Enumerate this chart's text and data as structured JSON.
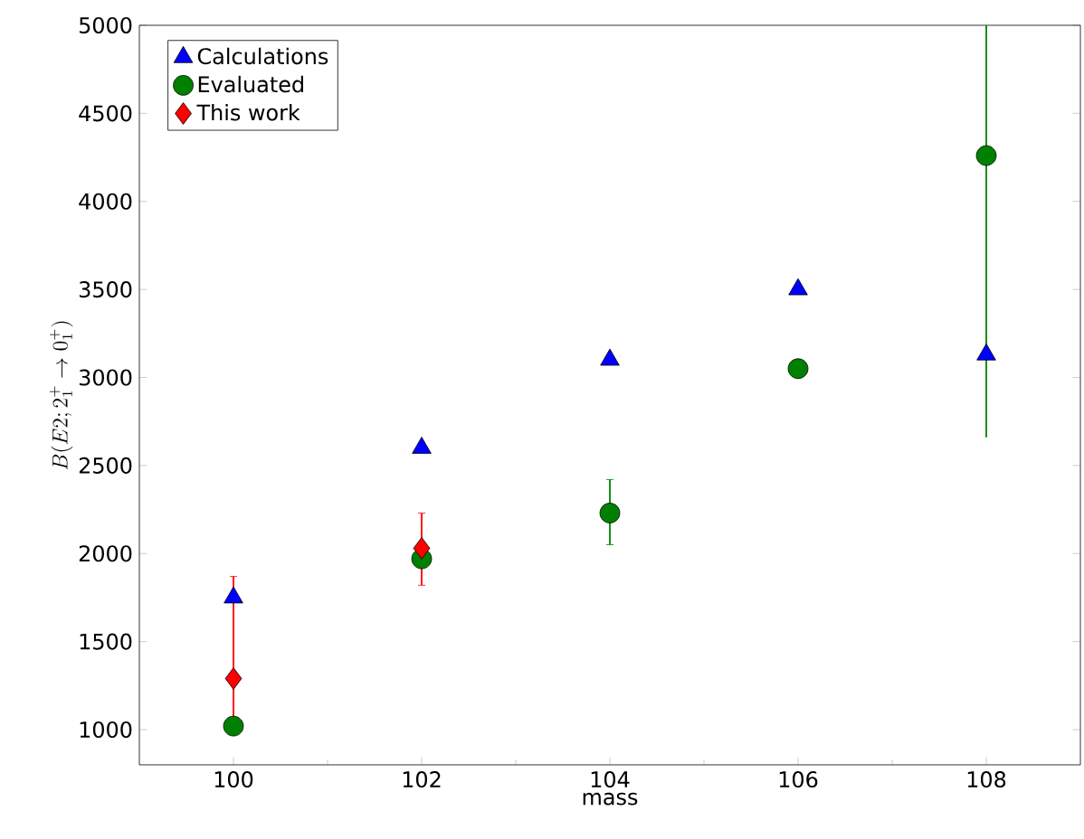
{
  "chart_data": {
    "type": "scatter",
    "xlabel": "mass",
    "ylabel": "B(E2;2_1^+\\rightarrow 0_1^+)",
    "x": [
      100,
      102,
      104,
      106,
      108
    ],
    "series": [
      {
        "name": "Calculations",
        "color": "#0000ff",
        "marker": "triangle",
        "values": [
          1750,
          2600,
          3100,
          3500,
          3130
        ]
      },
      {
        "name": "Evaluated",
        "color": "#008000",
        "marker": "circle",
        "values": [
          1020,
          1970,
          2230,
          3050,
          4260
        ],
        "errors": [
          null,
          null,
          [
            2050,
            2420
          ],
          null,
          [
            2660,
            5000
          ]
        ]
      },
      {
        "name": "This work",
        "color": "#ff0000",
        "marker": "diamond",
        "x": [
          100,
          102
        ],
        "values": [
          1290,
          2030
        ],
        "errors": [
          [
            1050,
            1870
          ],
          [
            1820,
            2230
          ]
        ]
      }
    ],
    "xlim": [
      99,
      109
    ],
    "ylim": [
      800,
      5000
    ],
    "xticks": [
      100,
      102,
      104,
      106,
      108
    ],
    "yticks": [
      1000,
      1500,
      2000,
      2500,
      3000,
      3500,
      4000,
      4500,
      5000
    ],
    "grid": false,
    "legend": "top left"
  }
}
